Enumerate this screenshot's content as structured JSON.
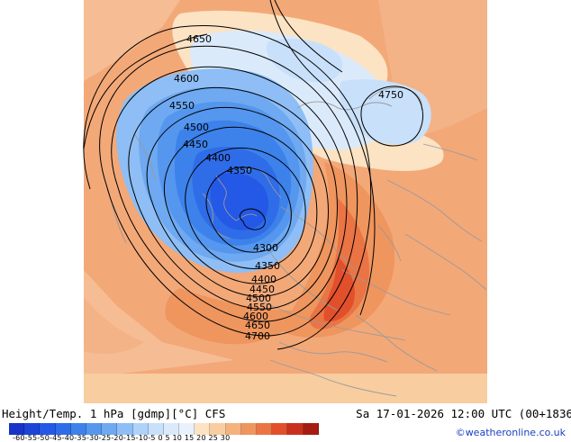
{
  "footer": {
    "title": "Height/Temp. 1 hPa [gdmp][°C] CFS",
    "datetime": "Sa 17-01-2026 12:00 UTC (00+1836",
    "copyright": "©weatheronline.co.uk"
  },
  "colorbar": {
    "ticks": [
      "-60",
      "-55",
      "-50",
      "-45",
      "-40",
      "-35",
      "-30",
      "-25",
      "-20",
      "-15",
      "-10",
      "-5",
      "0",
      "5",
      "10",
      "15",
      "20",
      "25",
      "30"
    ],
    "tick_text": "-60-55-50-45-40-35-30-25-20-15-10-5  0   5  10  15  20  25  30",
    "colors": [
      "#1733c8",
      "#1c45d8",
      "#2458e6",
      "#2f6ce8",
      "#3d82ea",
      "#5596ee",
      "#6ea9f1",
      "#8ebef5",
      "#aed2f8",
      "#c8e0fa",
      "#dbeafb",
      "#e9f2fc",
      "#fbe3c3",
      "#f8cda0",
      "#f4b27e",
      "#ef955e",
      "#ea7444",
      "#e2502b",
      "#c8301d",
      "#a51c12"
    ]
  },
  "contours": [
    {
      "label": "4650",
      "kind": "height"
    },
    {
      "label": "4600",
      "kind": "height"
    },
    {
      "label": "4550",
      "kind": "height"
    },
    {
      "label": "4500",
      "kind": "height"
    },
    {
      "label": "4450",
      "kind": "height"
    },
    {
      "label": "4400",
      "kind": "height"
    },
    {
      "label": "4350",
      "kind": "height"
    },
    {
      "label": "4300",
      "kind": "height"
    },
    {
      "label": "4350",
      "kind": "height"
    },
    {
      "label": "4400",
      "kind": "height"
    },
    {
      "label": "4450",
      "kind": "height"
    },
    {
      "label": "4500",
      "kind": "height"
    },
    {
      "label": "4550",
      "kind": "height"
    },
    {
      "label": "4600",
      "kind": "height"
    },
    {
      "label": "4650",
      "kind": "height"
    },
    {
      "label": "4700",
      "kind": "height"
    },
    {
      "label": "4750",
      "kind": "height"
    }
  ]
}
